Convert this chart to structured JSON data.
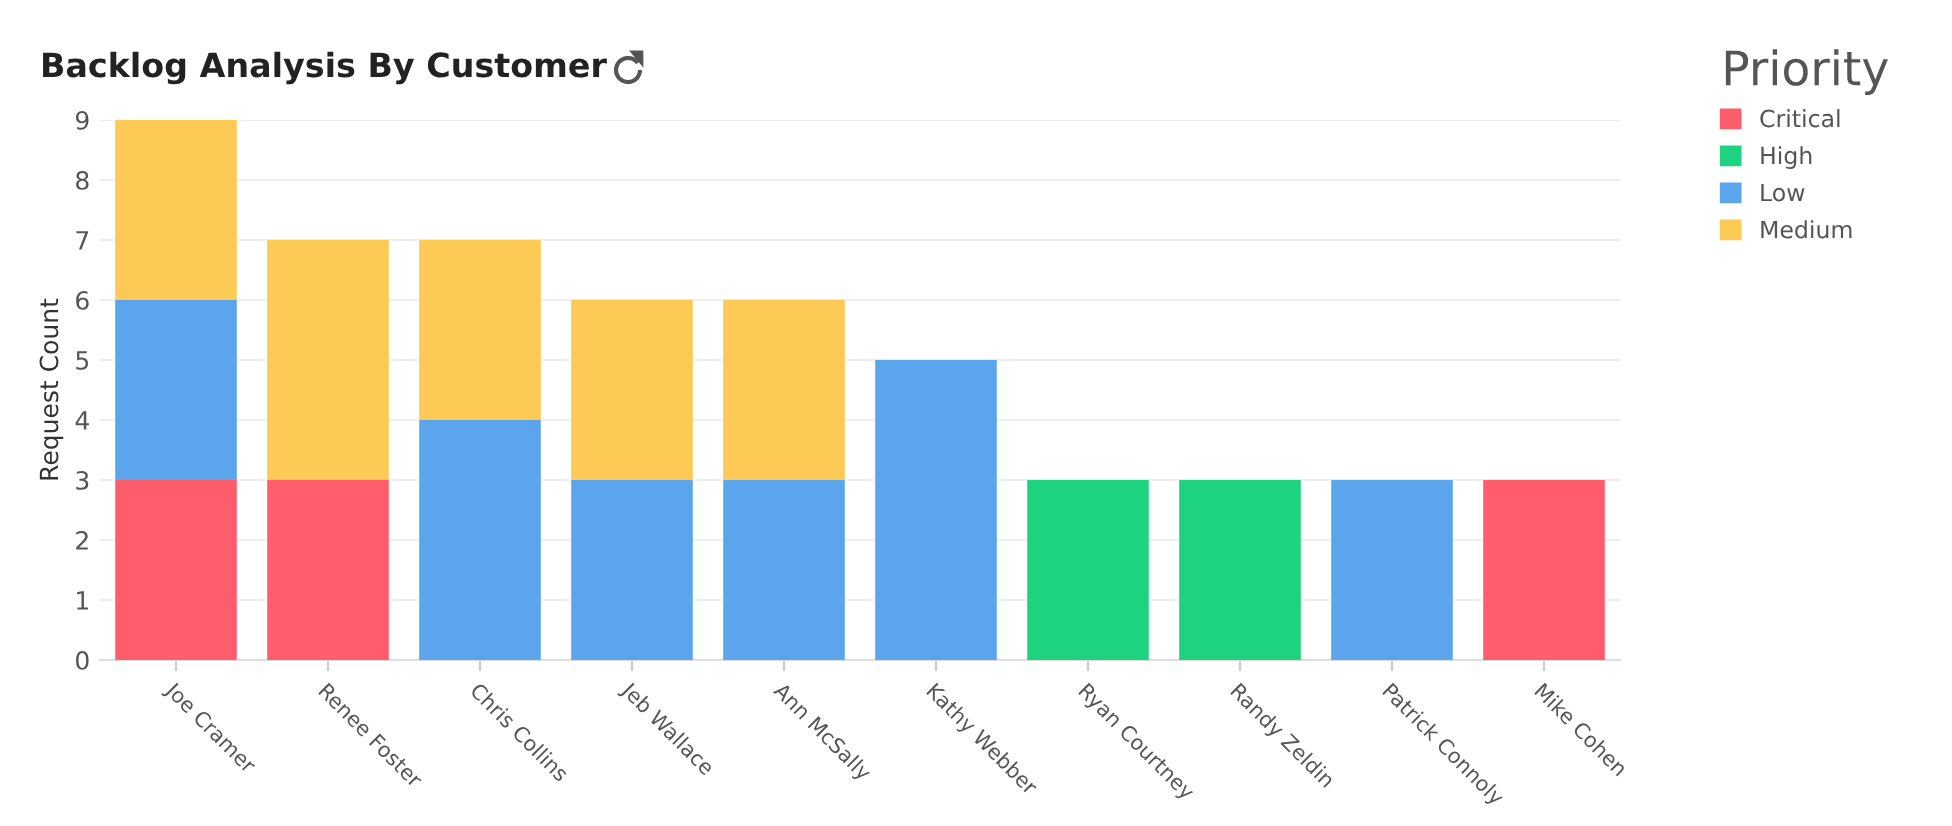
{
  "chart_data": {
    "type": "bar",
    "title": "Backlog Analysis By Customer",
    "ylabel": "Request Count",
    "categories": [
      "Joe Cramer",
      "Renee Foster",
      "Chris Collins",
      "Jeb Wallace",
      "Ann McSally",
      "Kathy Webber",
      "Ryan Courtney",
      "Randy Zeldin",
      "Patrick Connoly",
      "Mike Cohen"
    ],
    "stacked": true,
    "series": [
      {
        "name": "Critical",
        "color": "#ff5c6c",
        "values": [
          3,
          3,
          null,
          null,
          null,
          null,
          null,
          null,
          null,
          3
        ]
      },
      {
        "name": "High",
        "color": "#1ed37f",
        "values": [
          null,
          null,
          null,
          null,
          null,
          null,
          3,
          3,
          null,
          null
        ]
      },
      {
        "name": "Low",
        "color": "#5aa5ec",
        "values": [
          3,
          null,
          4,
          3,
          3,
          5,
          null,
          null,
          3,
          null
        ]
      },
      {
        "name": "Medium",
        "color": "#fdcb55",
        "values": [
          3,
          4,
          3,
          3,
          3,
          null,
          null,
          null,
          null,
          null
        ]
      }
    ],
    "ylim": [
      0,
      9
    ],
    "yticks": [
      0,
      1,
      2,
      3,
      4,
      5,
      6,
      7,
      8,
      9
    ],
    "grid": "y",
    "legend": "top right",
    "legend_title": "Priority"
  }
}
